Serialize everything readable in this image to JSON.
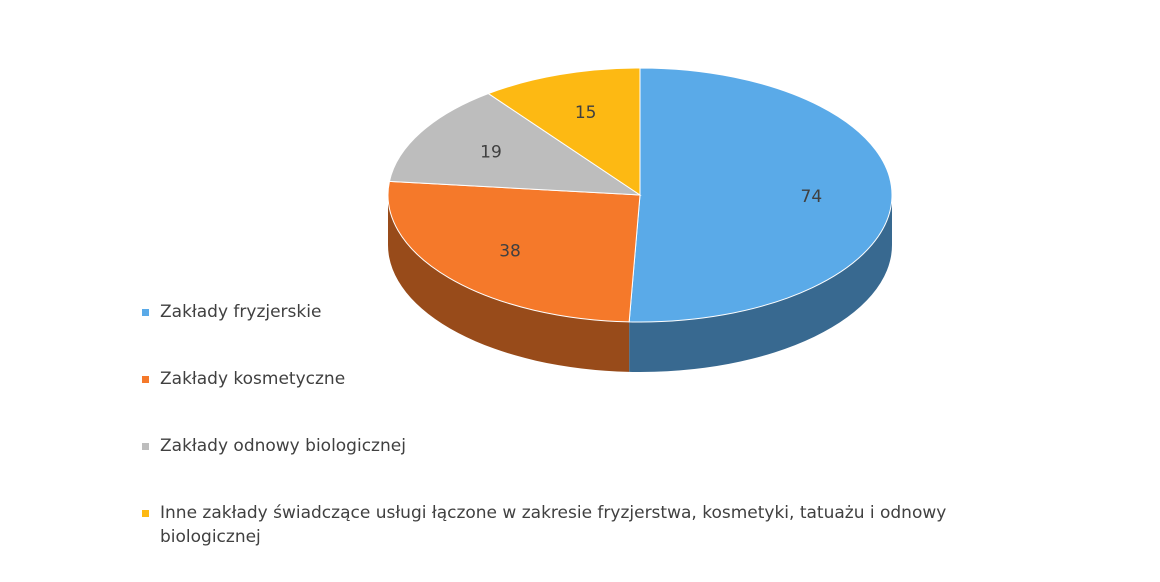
{
  "chart_data": {
    "type": "pie",
    "categories": [
      "Zakłady fryzjerskie",
      "Zakłady kosmetyczne",
      "Zakłady odnowy biologicznej",
      "Inne zakłady świadczące usługi łączone w zakresie fryzjerstwa, kosmetyki, tatuażu i odnowy biologicznej"
    ],
    "values": [
      74,
      38,
      19,
      15
    ],
    "colors": [
      "#5aaae8",
      "#f5792a",
      "#bdbdbd",
      "#fdb913"
    ]
  }
}
